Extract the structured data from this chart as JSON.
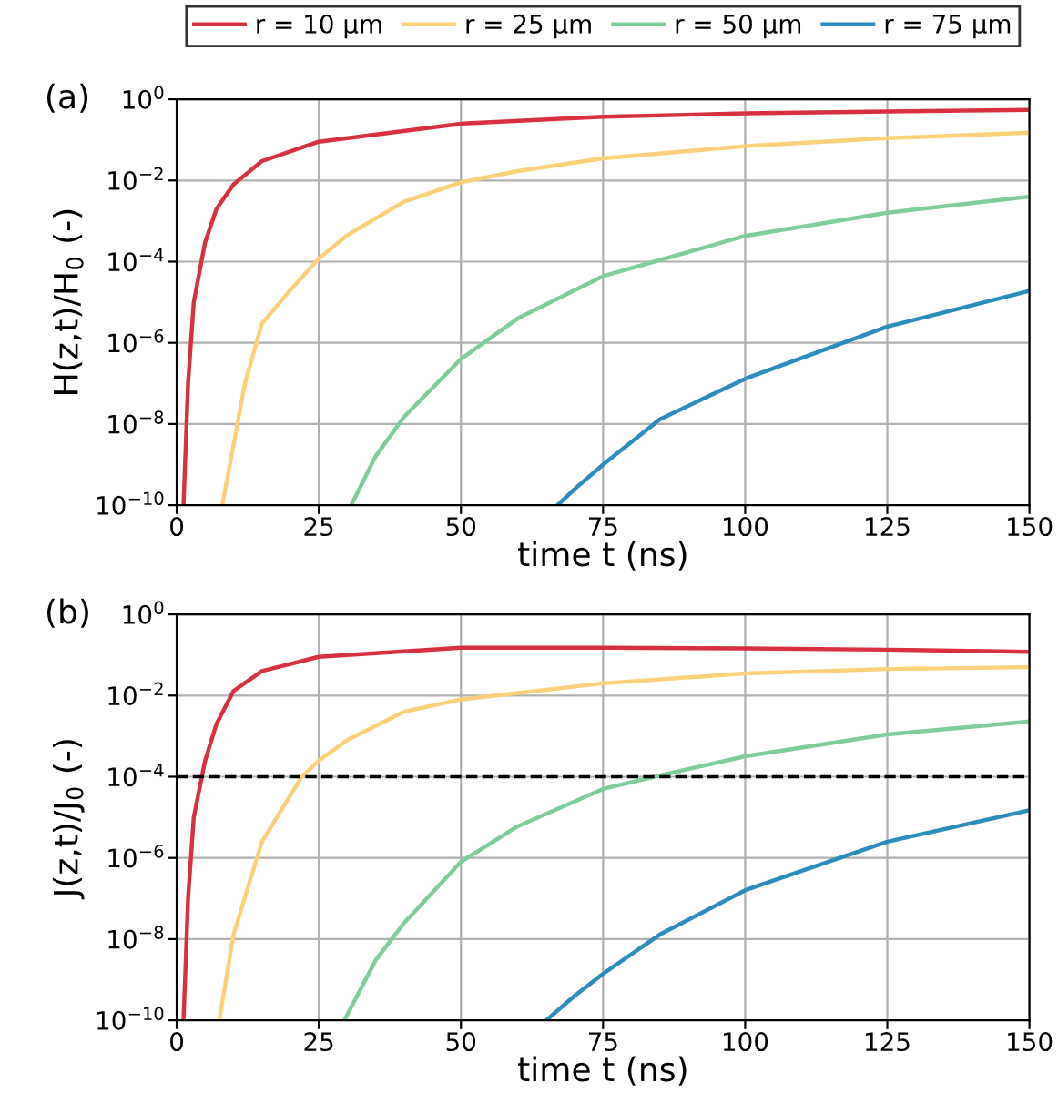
{
  "chart_data": [
    {
      "type": "line",
      "annotations": [
        "(a)"
      ],
      "xlabel": "time t (ns)",
      "ylabel": "H(z,t)/H$_{0}$ (-)",
      "log": "y",
      "grid": true,
      "legend": "top",
      "xlim": [
        0,
        150
      ],
      "xticks": [
        0,
        25,
        50,
        75,
        100,
        125,
        150
      ],
      "ylim": [
        1e-10,
        1
      ],
      "yticks": [
        {
          "value": 1e-10,
          "label": "10$^{−10}$"
        },
        {
          "value": 1e-08,
          "label": "10$^{−8}$"
        },
        {
          "value": 1e-06,
          "label": "10$^{−6}$"
        },
        {
          "value": 0.0001,
          "label": "10$^{−4}$"
        },
        {
          "value": 0.01,
          "label": "10$^{−2}$"
        },
        {
          "value": 1,
          "label": "10$^{0}$"
        }
      ],
      "series": [
        {
          "name": "r = 10 µm",
          "color": "#d7303f",
          "x": [
            1.2,
            2,
            3,
            5,
            7,
            10,
            15,
            25,
            50,
            75,
            100,
            125,
            150
          ],
          "values": [
            1e-10,
            1e-07,
            1e-05,
            0.0003,
            0.002,
            0.008,
            0.03,
            0.09,
            0.25,
            0.37,
            0.45,
            0.5,
            0.55
          ]
        },
        {
          "name": "r = 25 µm",
          "color": "#fdd17a",
          "x": [
            8,
            10,
            12,
            15,
            20,
            25,
            30,
            40,
            50,
            60,
            75,
            100,
            125,
            150
          ],
          "values": [
            1e-10,
            3e-09,
            1e-07,
            3e-06,
            2e-05,
            0.00012,
            0.00045,
            0.003,
            0.009,
            0.017,
            0.035,
            0.07,
            0.11,
            0.15
          ]
        },
        {
          "name": "r = 50 µm",
          "color": "#7fcd9a",
          "x": [
            30.7,
            35,
            40,
            50,
            60,
            75,
            100,
            125,
            150
          ],
          "values": [
            1e-10,
            1.6e-09,
            1.5e-08,
            4e-07,
            4e-06,
            4.4e-05,
            0.00043,
            0.0016,
            0.004
          ]
        },
        {
          "name": "r = 75 µm",
          "color": "#2b8cbe",
          "x": [
            67,
            70,
            75,
            85,
            100,
            125,
            150
          ],
          "values": [
            1e-10,
            2.5e-10,
            1e-09,
            1.3e-08,
            1.3e-07,
            2.5e-06,
            1.9e-05
          ]
        }
      ]
    },
    {
      "type": "line",
      "annotations": [
        "(b)"
      ],
      "xlabel": "time t (ns)",
      "ylabel": "J(z,t)/J$_{0}$ (-)",
      "log": "y",
      "grid": true,
      "xlim": [
        0,
        150
      ],
      "xticks": [
        0,
        25,
        50,
        75,
        100,
        125,
        150
      ],
      "ylim": [
        1e-10,
        1
      ],
      "yticks": [
        {
          "value": 1e-10,
          "label": "10$^{−10}$"
        },
        {
          "value": 1e-08,
          "label": "10$^{−8}$"
        },
        {
          "value": 1e-06,
          "label": "10$^{−6}$"
        },
        {
          "value": 0.0001,
          "label": "10$^{−4}$"
        },
        {
          "value": 0.01,
          "label": "10$^{−2}$"
        },
        {
          "value": 1,
          "label": "10$^{0}$"
        }
      ],
      "ref_lines": [
        {
          "axis": "y",
          "value": 0.0001,
          "color": "#000000",
          "line_style": "dashed"
        }
      ],
      "series": [
        {
          "color": "#d7303f",
          "x": [
            1.2,
            2,
            3,
            5,
            7,
            10,
            15,
            25,
            50,
            75,
            100,
            125,
            150
          ],
          "values": [
            1e-10,
            1e-07,
            1e-05,
            0.00025,
            0.002,
            0.013,
            0.04,
            0.09,
            0.15,
            0.15,
            0.145,
            0.135,
            0.12
          ]
        },
        {
          "color": "#fdd17a",
          "x": [
            7.5,
            10,
            15,
            22,
            25,
            30,
            40,
            50,
            75,
            100,
            125,
            150
          ],
          "values": [
            1e-10,
            1.3e-08,
            2.5e-06,
            0.0001,
            0.00025,
            0.0008,
            0.004,
            0.008,
            0.02,
            0.035,
            0.045,
            0.05
          ]
        },
        {
          "color": "#7fcd9a",
          "x": [
            29.5,
            35,
            40,
            50,
            60,
            75,
            84,
            100,
            125,
            150
          ],
          "values": [
            1e-10,
            3e-09,
            2.5e-08,
            8e-07,
            6e-06,
            5e-05,
            0.0001,
            0.00032,
            0.0011,
            0.0023
          ]
        },
        {
          "color": "#2b8cbe",
          "x": [
            65,
            70,
            75,
            85,
            100,
            125,
            150
          ],
          "values": [
            1e-10,
            4e-10,
            1.4e-09,
            1.3e-08,
            1.6e-07,
            2.5e-06,
            1.5e-05
          ]
        }
      ]
    }
  ]
}
